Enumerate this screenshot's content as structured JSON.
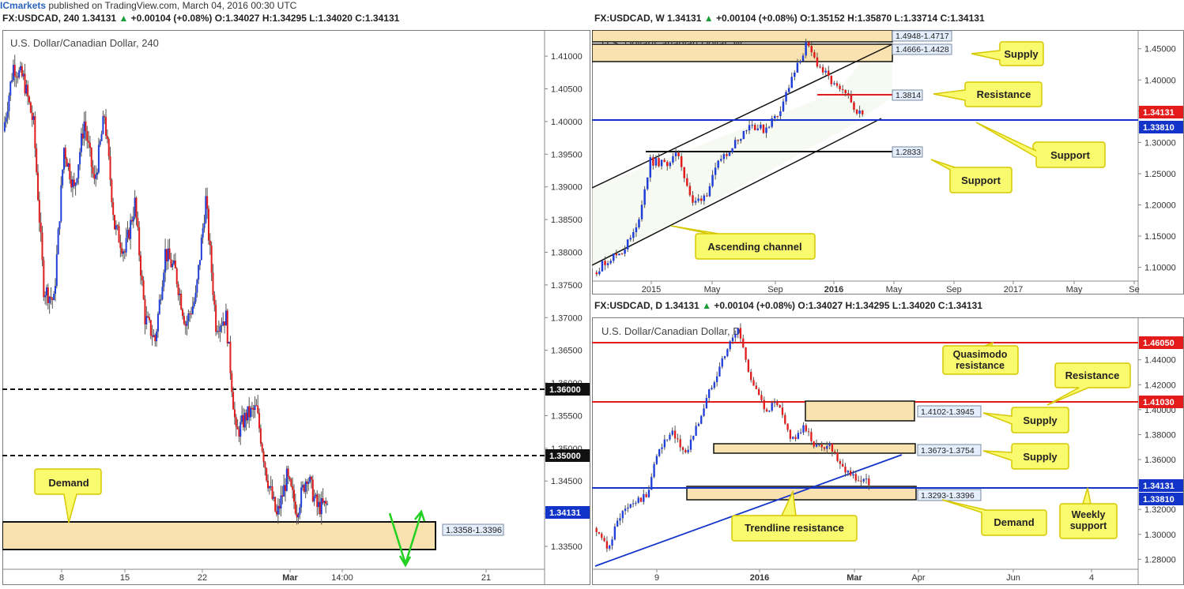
{
  "topbar": {
    "brand": "ICmarkets",
    "text": "published on TradingView.com, March 04, 2016 00:30 UTC"
  },
  "colors": {
    "bull": "#1f3fd8",
    "bear": "#e01c1c",
    "zone_fill": "#fae2b0",
    "callout_fill": "#fafa6e",
    "callout_stroke": "#d6c800",
    "support_line": "#1234c8",
    "resistance_line": "#e41b1b",
    "up_text": "#1a9d3a"
  },
  "charts": [
    {
      "id": "h4",
      "header": {
        "symbol": "FX:USDCAD, 240",
        "price": "1.34131",
        "change": "+0.00104 (+0.08%)",
        "o": "O:1.34027",
        "h": "H:1.34295",
        "l": "L:1.34020",
        "c": "C:1.34131"
      },
      "watermark": "U.S. Dollar/Canadian Dollar, 240",
      "y_ticks": [
        "1.41000",
        "1.40500",
        "1.40000",
        "1.39500",
        "1.39000",
        "1.38500",
        "1.38000",
        "1.37500",
        "1.37000",
        "1.36500",
        "1.36000",
        "1.35500",
        "1.35000",
        "1.34500",
        "1.34000",
        "1.33500"
      ],
      "x_ticks": [
        "8",
        "15",
        "22",
        "Mar",
        "14:00",
        "21"
      ],
      "price_labels": [
        {
          "text": "1.36000",
          "style": "black"
        },
        {
          "text": "1.35000",
          "style": "black"
        },
        {
          "text": "1.34131",
          "style": "blue"
        }
      ],
      "zone_label": "1.3358-1.3396",
      "callouts": [
        "Demand"
      ]
    },
    {
      "id": "weekly",
      "header": {
        "symbol": "FX:USDCAD, W",
        "price": "1.34131",
        "change": "+0.00104 (+0.08%)",
        "o": "O:1.35152",
        "h": "H:1.35870",
        "l": "L:1.33714",
        "c": "C:1.34131"
      },
      "watermark": "U.S. Dollar/Canadian Dollar, W",
      "y_ticks": [
        "1.45000",
        "1.40000",
        "1.35000",
        "1.30000",
        "1.25000",
        "1.20000",
        "1.15000",
        "1.10000"
      ],
      "x_ticks": [
        "2015",
        "May",
        "Sep",
        "2016",
        "May",
        "Sep",
        "2017",
        "May",
        "Se"
      ],
      "price_labels": [
        {
          "text": "1.34131",
          "style": "red"
        },
        {
          "text": "1.33810",
          "style": "blue"
        }
      ],
      "zone_labels": [
        "1.4948-1.4717",
        "1.4666-1.4428",
        "1.3814",
        "1.2833"
      ],
      "callouts": [
        "Supply",
        "Resistance",
        "Support",
        "Support",
        "Ascending channel"
      ]
    },
    {
      "id": "daily",
      "header": {
        "symbol": "FX:USDCAD, D",
        "price": "1.34131",
        "change": "+0.00104 (+0.08%)",
        "o": "O:1.34027",
        "h": "H:1.34295",
        "l": "L:1.34020",
        "c": "C:1.34131"
      },
      "watermark": "U.S. Dollar/Canadian Dollar, D",
      "y_ticks": [
        "1.44000",
        "1.42000",
        "1.40000",
        "1.38000",
        "1.36000",
        "1.34000",
        "1.32000",
        "1.30000",
        "1.28000"
      ],
      "x_ticks": [
        "9",
        "2016",
        "Mar",
        "Apr",
        "Jun",
        "4"
      ],
      "price_labels": [
        {
          "text": "1.46050",
          "style": "red"
        },
        {
          "text": "1.41030",
          "style": "red"
        },
        {
          "text": "1.34131",
          "style": "blue"
        },
        {
          "text": "1.33810",
          "style": "blue"
        }
      ],
      "zone_labels": [
        "1.4102-1.3945",
        "1.3673-1.3754",
        "1.3293-1.3396"
      ],
      "callouts": [
        "Quasimodo resistance",
        "Resistance",
        "Supply",
        "Supply",
        "Trendline resistance",
        "Demand",
        "Weekly support"
      ]
    }
  ],
  "chart_data": [
    {
      "type": "candlestick",
      "title": "U.S. Dollar/Canadian Dollar, 240",
      "ylim": [
        1.3315,
        1.414
      ],
      "x_categories": [
        "8",
        "15",
        "22",
        "Mar",
        "14:00",
        "21"
      ],
      "levels": [
        {
          "value": 1.36,
          "kind": "psychological",
          "style": "dashed"
        },
        {
          "value": 1.35,
          "kind": "psychological",
          "style": "dashed"
        }
      ],
      "zones": [
        {
          "name": "Demand",
          "from": 1.3358,
          "to": 1.3396
        }
      ],
      "last": 1.34131,
      "waypoints": [
        1.3985,
        1.4085,
        1.4065,
        1.3995,
        1.3745,
        1.3725,
        1.396,
        1.3895,
        1.4,
        1.3905,
        1.401,
        1.384,
        1.38,
        1.3875,
        1.37,
        1.3665,
        1.38,
        1.377,
        1.369,
        1.373,
        1.388,
        1.369,
        1.37,
        1.352,
        1.355,
        1.356,
        1.346,
        1.3395,
        1.3455,
        1.3405,
        1.346,
        1.341,
        1.3413
      ]
    },
    {
      "type": "candlestick",
      "title": "U.S. Dollar/Canadian Dollar, W",
      "ylim": [
        1.078,
        1.48
      ],
      "x_categories": [
        "2015",
        "May",
        "Sep",
        "2016",
        "May",
        "Sep",
        "2017",
        "May",
        "Se"
      ],
      "levels": [
        {
          "value": 1.3381,
          "kind": "support",
          "color": "blue"
        },
        {
          "value": 1.3814,
          "kind": "resistance",
          "color": "red"
        },
        {
          "value": 1.2833,
          "kind": "support",
          "color": "black"
        }
      ],
      "zones": [
        {
          "name": "Supply",
          "from": 1.4717,
          "to": 1.4948
        },
        {
          "name": "Supply",
          "from": 1.4428,
          "to": 1.4666
        }
      ],
      "channel": "Ascending channel",
      "last": 1.34131,
      "waypoints": [
        1.092,
        1.112,
        1.126,
        1.16,
        1.27,
        1.265,
        1.28,
        1.2,
        1.22,
        1.275,
        1.3,
        1.33,
        1.32,
        1.345,
        1.4,
        1.455,
        1.42,
        1.39,
        1.37,
        1.3413
      ]
    },
    {
      "type": "candlestick",
      "title": "U.S. Dollar/Canadian Dollar, D",
      "ylim": [
        1.272,
        1.474
      ],
      "x_categories": [
        "9",
        "2016",
        "Mar",
        "Apr",
        "Jun",
        "4"
      ],
      "levels": [
        {
          "value": 1.4605,
          "kind": "quasimodo resistance",
          "color": "red"
        },
        {
          "value": 1.4103,
          "kind": "resistance",
          "color": "red"
        },
        {
          "value": 1.3381,
          "kind": "weekly support",
          "color": "blue"
        }
      ],
      "zones": [
        {
          "name": "Supply",
          "from": 1.3945,
          "to": 1.4102
        },
        {
          "name": "Supply",
          "from": 1.3673,
          "to": 1.3754
        },
        {
          "name": "Demand",
          "from": 1.3293,
          "to": 1.3396
        }
      ],
      "trendline": "Trendline resistance",
      "last": 1.34131,
      "waypoints": [
        1.305,
        1.288,
        1.315,
        1.325,
        1.33,
        1.37,
        1.38,
        1.365,
        1.39,
        1.42,
        1.445,
        1.465,
        1.425,
        1.4,
        1.405,
        1.375,
        1.385,
        1.37,
        1.372,
        1.355,
        1.345,
        1.3413
      ]
    }
  ]
}
